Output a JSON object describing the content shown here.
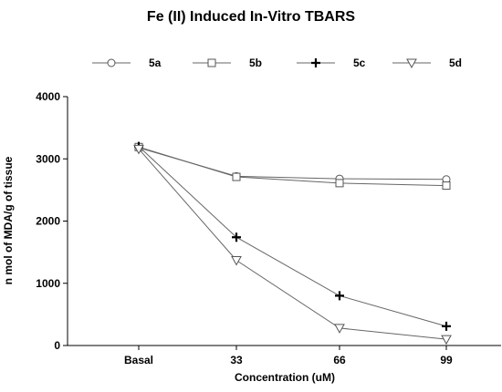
{
  "chart_data": {
    "type": "line",
    "title": "Fe (II) Induced In-Vitro TBARS",
    "xlabel": "Concentration (uM)",
    "ylabel": "n mol of MDA/g of tissue",
    "categories": [
      "Basal",
      "33",
      "66",
      "99"
    ],
    "ylim": [
      0,
      4000
    ],
    "yticks": [
      0,
      1000,
      2000,
      3000,
      4000
    ],
    "legend_position": "top",
    "grid": false,
    "series": [
      {
        "name": "5a",
        "marker": "circle",
        "values": [
          3180,
          2720,
          2680,
          2670
        ]
      },
      {
        "name": "5b",
        "marker": "square",
        "values": [
          3190,
          2710,
          2610,
          2570
        ]
      },
      {
        "name": "5c",
        "marker": "plus",
        "values": [
          3200,
          1740,
          800,
          310
        ]
      },
      {
        "name": "5d",
        "marker": "triangle-down",
        "values": [
          3160,
          1370,
          280,
          100
        ]
      }
    ]
  }
}
